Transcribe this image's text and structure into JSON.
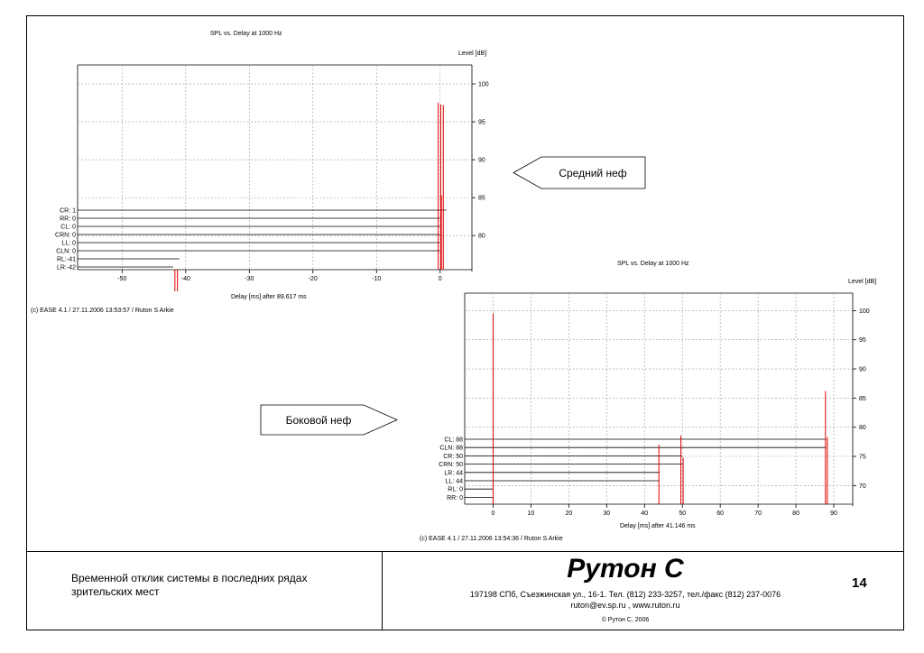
{
  "charts": [
    {
      "title": "SPL vs. Delay at  1000 Hz",
      "ylabel": "Level [dB]",
      "xlabel": "Delay [ms] after   89.617 ms",
      "credit": "(c) EASE 4.1   / 27.11.2006 13:53:57 / Ruton S Arkie"
    },
    {
      "title": "SPL vs. Delay at  1000 Hz",
      "ylabel": "Level [dB]",
      "xlabel": "Delay [ms] after   41.146 ms",
      "credit": "(c) EASE 4.1   / 27.11.2006 13:54:36 / Ruton S Arkie"
    }
  ],
  "chart_data": [
    {
      "type": "bar",
      "title": "SPL vs. Delay at  1000 Hz",
      "xlabel": "Delay [ms] after   89.617 ms",
      "ylabel": "Level [dB]",
      "xlim": [
        -57,
        5
      ],
      "ylim": [
        75.5,
        102.5
      ],
      "x_ticks": [
        -50,
        -40,
        -30,
        -20,
        -10,
        0
      ],
      "y_ticks": [
        80,
        85,
        90,
        95,
        100
      ],
      "grid": true,
      "sources": [
        {
          "label": "CR: 1",
          "delay": 1
        },
        {
          "label": "RR: 0",
          "delay": 0
        },
        {
          "label": "CL: 0",
          "delay": 0
        },
        {
          "label": "CRN: 0",
          "delay": 0
        },
        {
          "label": "LL: 0",
          "delay": 0
        },
        {
          "label": "CLN: 0",
          "delay": 0
        },
        {
          "label": "RL:-41",
          "delay": -41
        },
        {
          "label": "LR:-42",
          "delay": -42
        }
      ],
      "impulses": [
        {
          "delay": -0.3,
          "level": 97.5
        },
        {
          "delay": 0.1,
          "level": 97.3
        },
        {
          "delay": 0.5,
          "level": 97.2
        },
        {
          "delay": 0.2,
          "level": 85.3
        },
        {
          "delay": -41.7,
          "level": 72.5
        },
        {
          "delay": -41.3,
          "level": 72.4
        }
      ]
    },
    {
      "type": "bar",
      "title": "SPL vs. Delay at  1000 Hz",
      "xlabel": "Delay [ms] after   41.146 ms",
      "ylabel": "Level [dB]",
      "xlim": [
        -7.5,
        95
      ],
      "ylim": [
        66.8,
        103
      ],
      "x_ticks": [
        0,
        10,
        20,
        30,
        40,
        50,
        60,
        70,
        80,
        90
      ],
      "y_ticks": [
        70,
        75,
        80,
        85,
        90,
        95,
        100
      ],
      "grid": true,
      "sources": [
        {
          "label": "CL: 88",
          "delay": 88
        },
        {
          "label": "CLN: 88",
          "delay": 88
        },
        {
          "label": "CR: 50",
          "delay": 50
        },
        {
          "label": "CRN: 50",
          "delay": 50
        },
        {
          "label": "LR: 44",
          "delay": 44
        },
        {
          "label": "LL: 44",
          "delay": 44
        },
        {
          "label": "RL: 0",
          "delay": 0
        },
        {
          "label": "RR: 0",
          "delay": 0
        }
      ],
      "impulses": [
        {
          "delay": 0,
          "level": 99.5
        },
        {
          "delay": 43.8,
          "level": 77
        },
        {
          "delay": 49.6,
          "level": 78.6
        },
        {
          "delay": 50.2,
          "level": 74.8
        },
        {
          "delay": 87.8,
          "level": 86.2
        },
        {
          "delay": 88.3,
          "level": 78.3
        }
      ]
    }
  ],
  "callouts": {
    "middle_nave": "Средний неф",
    "side_nave": "Боковой неф"
  },
  "footer": {
    "caption": "Временной отклик системы в последних рядах зрительских мест",
    "logo": "Рутон С",
    "address": "197198 СПб, Съезжинская ул., 16-1. Тел. (812) 233-3257, тел./факс (812) 237-0076",
    "contacts": "ruton@ev.sp.ru ,  www.ruton.ru",
    "copyright": "© Рутон С, 2006",
    "page_number": "14"
  },
  "colors": {
    "impulse": "#e00000",
    "grid": "#9a9a9a",
    "axis": "#000000"
  }
}
